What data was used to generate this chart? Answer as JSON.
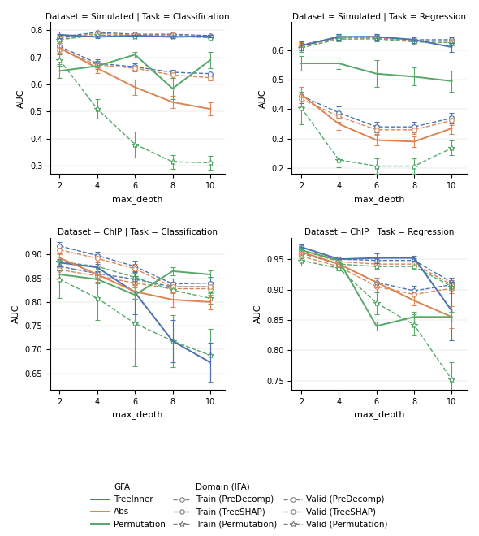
{
  "x": [
    2,
    4,
    6,
    8,
    10
  ],
  "subplots": [
    {
      "title": "Dataset = Simulated | Task = Classification",
      "ylim": [
        0.27,
        0.83
      ],
      "yticks": [
        0.3,
        0.4,
        0.5,
        0.6,
        0.7,
        0.8
      ],
      "gfa": {
        "TreeInner": {
          "y": [
            0.783,
            0.775,
            0.78,
            0.775,
            0.778
          ],
          "yerr": [
            0.013,
            0.004,
            0.004,
            0.004,
            0.004
          ]
        },
        "Abs": {
          "y": [
            0.735,
            0.66,
            0.59,
            0.535,
            0.51
          ],
          "yerr": [
            0.018,
            0.018,
            0.028,
            0.022,
            0.025
          ]
        },
        "Permutation": {
          "y": [
            0.65,
            0.668,
            0.71,
            0.585,
            0.69
          ],
          "yerr": [
            0.025,
            0.018,
            0.01,
            0.04,
            0.03
          ]
        }
      },
      "ifa": {
        "Train_PreDecomp": {
          "y": [
            0.74,
            0.678,
            0.665,
            0.645,
            0.64
          ],
          "yerr": [
            0.018,
            0.015,
            0.012,
            0.01,
            0.01
          ]
        },
        "Train_TreeSHAP": {
          "y": [
            0.73,
            0.672,
            0.66,
            0.635,
            0.625
          ],
          "yerr": [
            0.018,
            0.015,
            0.012,
            0.01,
            0.01
          ]
        },
        "Train_Permutation": {
          "y": [
            0.69,
            0.51,
            0.38,
            0.315,
            0.312
          ],
          "yerr": [
            0.022,
            0.035,
            0.048,
            0.025,
            0.025
          ]
        },
        "Valid_PreDecomp": {
          "y": [
            0.775,
            0.792,
            0.785,
            0.785,
            0.78
          ],
          "yerr": [
            0.012,
            0.004,
            0.004,
            0.004,
            0.004
          ]
        },
        "Valid_TreeSHAP": {
          "y": [
            0.77,
            0.788,
            0.782,
            0.782,
            0.776
          ],
          "yerr": [
            0.012,
            0.004,
            0.004,
            0.004,
            0.004
          ]
        },
        "Valid_Permutation": {
          "y": [
            0.765,
            0.782,
            0.778,
            0.778,
            0.772
          ],
          "yerr": [
            0.012,
            0.004,
            0.004,
            0.004,
            0.004
          ]
        }
      }
    },
    {
      "title": "Dataset = Simulated | Task = Regression",
      "ylim": [
        0.18,
        0.695
      ],
      "yticks": [
        0.2,
        0.3,
        0.4,
        0.5,
        0.6
      ],
      "gfa": {
        "TreeInner": {
          "y": [
            0.615,
            0.645,
            0.645,
            0.635,
            0.61
          ],
          "yerr": [
            0.015,
            0.01,
            0.01,
            0.01,
            0.015
          ]
        },
        "Abs": {
          "y": [
            0.45,
            0.35,
            0.295,
            0.29,
            0.335
          ],
          "yerr": [
            0.025,
            0.02,
            0.018,
            0.018,
            0.02
          ]
        },
        "Permutation": {
          "y": [
            0.555,
            0.555,
            0.52,
            0.51,
            0.495
          ],
          "yerr": [
            0.025,
            0.02,
            0.045,
            0.03,
            0.035
          ]
        }
      },
      "ifa": {
        "Train_PreDecomp": {
          "y": [
            0.445,
            0.388,
            0.34,
            0.34,
            0.37
          ],
          "yerr": [
            0.025,
            0.02,
            0.018,
            0.018,
            0.018
          ]
        },
        "Train_TreeSHAP": {
          "y": [
            0.435,
            0.375,
            0.33,
            0.33,
            0.362
          ],
          "yerr": [
            0.025,
            0.018,
            0.015,
            0.015,
            0.015
          ]
        },
        "Train_Permutation": {
          "y": [
            0.405,
            0.228,
            0.207,
            0.207,
            0.268
          ],
          "yerr": [
            0.055,
            0.025,
            0.025,
            0.025,
            0.025
          ]
        },
        "Valid_PreDecomp": {
          "y": [
            0.617,
            0.645,
            0.645,
            0.635,
            0.635
          ],
          "yerr": [
            0.015,
            0.008,
            0.008,
            0.008,
            0.008
          ]
        },
        "Valid_TreeSHAP": {
          "y": [
            0.613,
            0.641,
            0.641,
            0.631,
            0.63
          ],
          "yerr": [
            0.015,
            0.008,
            0.008,
            0.008,
            0.008
          ]
        },
        "Valid_Permutation": {
          "y": [
            0.608,
            0.637,
            0.638,
            0.628,
            0.625
          ],
          "yerr": [
            0.015,
            0.008,
            0.008,
            0.008,
            0.008
          ]
        }
      }
    },
    {
      "title": "Dataset = ChIP | Task = Classification",
      "ylim": [
        0.615,
        0.935
      ],
      "yticks": [
        0.65,
        0.7,
        0.75,
        0.8,
        0.85,
        0.9
      ],
      "gfa": {
        "TreeInner": {
          "y": [
            0.883,
            0.873,
            0.82,
            0.718,
            0.673
          ],
          "yerr": [
            0.008,
            0.008,
            0.045,
            0.045,
            0.042
          ]
        },
        "Abs": {
          "y": [
            0.893,
            0.858,
            0.822,
            0.805,
            0.8
          ],
          "yerr": [
            0.008,
            0.015,
            0.015,
            0.015,
            0.015
          ]
        },
        "Permutation": {
          "y": [
            0.858,
            0.848,
            0.815,
            0.865,
            0.858
          ],
          "yerr": [
            0.008,
            0.008,
            0.008,
            0.008,
            0.008
          ]
        }
      },
      "ifa": {
        "Train_PreDecomp": {
          "y": [
            0.875,
            0.86,
            0.848,
            0.832,
            0.832
          ],
          "yerr": [
            0.008,
            0.008,
            0.012,
            0.01,
            0.01
          ]
        },
        "Train_TreeSHAP": {
          "y": [
            0.868,
            0.855,
            0.84,
            0.828,
            0.828
          ],
          "yerr": [
            0.008,
            0.008,
            0.01,
            0.01,
            0.01
          ]
        },
        "Train_Permutation": {
          "y": [
            0.848,
            0.808,
            0.755,
            0.718,
            0.688
          ],
          "yerr": [
            0.04,
            0.045,
            0.09,
            0.055,
            0.055
          ]
        },
        "Valid_PreDecomp": {
          "y": [
            0.918,
            0.898,
            0.875,
            0.838,
            0.84
          ],
          "yerr": [
            0.008,
            0.008,
            0.012,
            0.012,
            0.012
          ]
        },
        "Valid_TreeSHAP": {
          "y": [
            0.91,
            0.892,
            0.87,
            0.832,
            0.832
          ],
          "yerr": [
            0.008,
            0.008,
            0.01,
            0.01,
            0.01
          ]
        },
        "Valid_Permutation": {
          "y": [
            0.885,
            0.875,
            0.852,
            0.825,
            0.808
          ],
          "yerr": [
            0.01,
            0.01,
            0.01,
            0.012,
            0.012
          ]
        }
      }
    },
    {
      "title": "Dataset = ChIP | Task = Regression",
      "ylim": [
        0.735,
        0.985
      ],
      "yticks": [
        0.75,
        0.8,
        0.85,
        0.9,
        0.95
      ],
      "gfa": {
        "TreeInner": {
          "y": [
            0.97,
            0.95,
            0.952,
            0.952,
            0.865
          ],
          "yerr": [
            0.004,
            0.004,
            0.008,
            0.004,
            0.048
          ]
        },
        "Abs": {
          "y": [
            0.962,
            0.942,
            0.912,
            0.882,
            0.855
          ],
          "yerr": [
            0.004,
            0.004,
            0.008,
            0.008,
            0.018
          ]
        },
        "Permutation": {
          "y": [
            0.965,
            0.948,
            0.84,
            0.855,
            0.855
          ],
          "yerr": [
            0.004,
            0.004,
            0.008,
            0.008,
            0.008
          ]
        }
      },
      "ifa": {
        "Train_PreDecomp": {
          "y": [
            0.96,
            0.942,
            0.912,
            0.898,
            0.908
          ],
          "yerr": [
            0.004,
            0.004,
            0.008,
            0.008,
            0.008
          ]
        },
        "Train_TreeSHAP": {
          "y": [
            0.955,
            0.938,
            0.905,
            0.892,
            0.902
          ],
          "yerr": [
            0.004,
            0.004,
            0.008,
            0.008,
            0.008
          ]
        },
        "Train_Permutation": {
          "y": [
            0.948,
            0.935,
            0.878,
            0.842,
            0.752
          ],
          "yerr": [
            0.008,
            0.004,
            0.018,
            0.018,
            0.028
          ]
        },
        "Valid_PreDecomp": {
          "y": [
            0.97,
            0.95,
            0.948,
            0.948,
            0.912
          ],
          "yerr": [
            0.004,
            0.004,
            0.004,
            0.004,
            0.008
          ]
        },
        "Valid_TreeSHAP": {
          "y": [
            0.965,
            0.946,
            0.942,
            0.942,
            0.908
          ],
          "yerr": [
            0.004,
            0.004,
            0.004,
            0.004,
            0.008
          ]
        },
        "Valid_Permutation": {
          "y": [
            0.96,
            0.942,
            0.938,
            0.938,
            0.905
          ],
          "yerr": [
            0.004,
            0.004,
            0.004,
            0.004,
            0.008
          ]
        }
      }
    }
  ],
  "colors": {
    "blue": "#4C72B0",
    "orange": "#DD8452",
    "green": "#55A868"
  },
  "legend": {
    "gfa_title": "GFA",
    "ifa_title": "Domain (IFA)",
    "gfa_lines": [
      "TreeInner",
      "Abs",
      "Permutation"
    ],
    "train_lines": [
      "Train (PreDecomp)",
      "Train (TreeSHAP)",
      "Train (Permutation)"
    ],
    "valid_lines": [
      "Valid (PreDecomp)",
      "Valid (TreeSHAP)",
      "Valid (Permutation)"
    ]
  }
}
